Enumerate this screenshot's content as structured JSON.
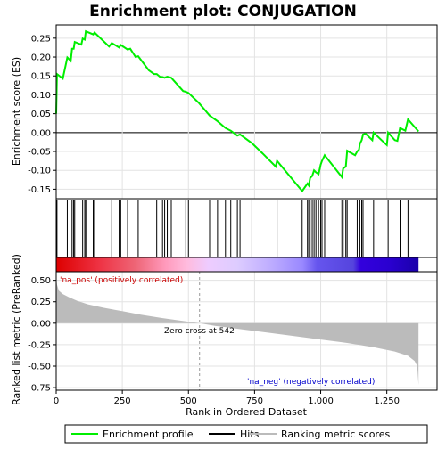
{
  "chart_data": {
    "type": "line",
    "title": "Enrichment plot: CONJUGATION",
    "top_panel": {
      "ylabel": "Enrichment score (ES)",
      "ylim": [
        -0.175,
        0.285
      ],
      "yticks": [
        "-0.15",
        "-0.10",
        "-0.05",
        "0.00",
        "0.05",
        "0.10",
        "0.15",
        "0.20",
        "0.25"
      ],
      "grid": true,
      "series": [
        {
          "name": "Enrichment profile",
          "color": "#00ee00",
          "points": [
            [
              0,
              0.05
            ],
            [
              3,
              0.155
            ],
            [
              25,
              0.143
            ],
            [
              42,
              0.199
            ],
            [
              55,
              0.19
            ],
            [
              60,
              0.222
            ],
            [
              66,
              0.222
            ],
            [
              70,
              0.24
            ],
            [
              95,
              0.233
            ],
            [
              100,
              0.249
            ],
            [
              108,
              0.246
            ],
            [
              112,
              0.268
            ],
            [
              140,
              0.26
            ],
            [
              145,
              0.265
            ],
            [
              200,
              0.228
            ],
            [
              210,
              0.237
            ],
            [
              238,
              0.225
            ],
            [
              244,
              0.232
            ],
            [
              270,
              0.22
            ],
            [
              280,
              0.222
            ],
            [
              300,
              0.2
            ],
            [
              310,
              0.202
            ],
            [
              350,
              0.165
            ],
            [
              370,
              0.155
            ],
            [
              380,
              0.155
            ],
            [
              392,
              0.148
            ],
            [
              402,
              0.147
            ],
            [
              410,
              0.145
            ],
            [
              420,
              0.148
            ],
            [
              435,
              0.145
            ],
            [
              480,
              0.11
            ],
            [
              490,
              0.108
            ],
            [
              500,
              0.105
            ],
            [
              540,
              0.078
            ],
            [
              580,
              0.045
            ],
            [
              610,
              0.03
            ],
            [
              640,
              0.012
            ],
            [
              660,
              0.005
            ],
            [
              685,
              -0.008
            ],
            [
              695,
              -0.005
            ],
            [
              740,
              -0.028
            ],
            [
              780,
              -0.055
            ],
            [
              830,
              -0.09
            ],
            [
              835,
              -0.075
            ],
            [
              930,
              -0.155
            ],
            [
              950,
              -0.135
            ],
            [
              955,
              -0.14
            ],
            [
              960,
              -0.12
            ],
            [
              968,
              -0.115
            ],
            [
              975,
              -0.1
            ],
            [
              982,
              -0.105
            ],
            [
              992,
              -0.11
            ],
            [
              1000,
              -0.085
            ],
            [
              1005,
              -0.075
            ],
            [
              1015,
              -0.06
            ],
            [
              1080,
              -0.118
            ],
            [
              1085,
              -0.095
            ],
            [
              1095,
              -0.09
            ],
            [
              1100,
              -0.048
            ],
            [
              1130,
              -0.06
            ],
            [
              1138,
              -0.05
            ],
            [
              1145,
              -0.045
            ],
            [
              1148,
              -0.03
            ],
            [
              1155,
              -0.02
            ],
            [
              1160,
              -0.005
            ],
            [
              1170,
              -0.003
            ],
            [
              1195,
              -0.02
            ],
            [
              1200,
              0.0
            ],
            [
              1230,
              -0.02
            ],
            [
              1250,
              -0.033
            ],
            [
              1255,
              0.0
            ],
            [
              1280,
              -0.02
            ],
            [
              1290,
              -0.022
            ],
            [
              1300,
              0.012
            ],
            [
              1320,
              0.005
            ],
            [
              1330,
              0.035
            ],
            [
              1370,
              0.003
            ]
          ]
        }
      ]
    },
    "hits": [
      3,
      42,
      60,
      66,
      70,
      100,
      108,
      112,
      140,
      145,
      210,
      238,
      244,
      270,
      310,
      380,
      402,
      410,
      420,
      435,
      490,
      500,
      580,
      610,
      640,
      660,
      685,
      695,
      740,
      835,
      930,
      950,
      955,
      960,
      968,
      975,
      982,
      992,
      1000,
      1005,
      1015,
      1080,
      1085,
      1095,
      1100,
      1138,
      1145,
      1148,
      1155,
      1160,
      1200,
      1255,
      1300,
      1330
    ],
    "color_bar": {
      "stops": [
        [
          0,
          "#dd0000"
        ],
        [
          0.12,
          "#ee3344"
        ],
        [
          0.22,
          "#ee6677"
        ],
        [
          0.3,
          "#ff99bb"
        ],
        [
          0.36,
          "#ffbbdd"
        ],
        [
          0.42,
          "#eeccff"
        ],
        [
          0.5,
          "#ddccff"
        ],
        [
          0.6,
          "#bbaaff"
        ],
        [
          0.68,
          "#9988ff"
        ],
        [
          0.72,
          "#6655ee"
        ],
        [
          0.82,
          "#5544dd"
        ],
        [
          0.84,
          "#3300dd"
        ],
        [
          0.92,
          "#2a00d0"
        ],
        [
          1.0,
          "#1a00aa"
        ]
      ]
    },
    "bottom_panel": {
      "ylabel": "Ranked list metric (PreRanked)",
      "xlabel": "Rank in Ordered Dataset",
      "ylim": [
        -0.78,
        0.6
      ],
      "yticks": [
        "-0.75",
        "-0.50",
        "-0.25",
        "0.00",
        "0.25",
        "0.50"
      ],
      "grid": true,
      "series": [
        {
          "name": "Ranking metric scores",
          "color": "#bbbbbb",
          "points": [
            [
              0,
              0.52
            ],
            [
              3,
              0.45
            ],
            [
              10,
              0.38
            ],
            [
              25,
              0.34
            ],
            [
              50,
              0.3
            ],
            [
              80,
              0.26
            ],
            [
              120,
              0.22
            ],
            [
              180,
              0.18
            ],
            [
              250,
              0.14
            ],
            [
              320,
              0.1
            ],
            [
              400,
              0.06
            ],
            [
              460,
              0.035
            ],
            [
              500,
              0.018
            ],
            [
              542,
              0.0
            ],
            [
              600,
              -0.03
            ],
            [
              700,
              -0.07
            ],
            [
              800,
              -0.11
            ],
            [
              900,
              -0.15
            ],
            [
              1000,
              -0.19
            ],
            [
              1100,
              -0.23
            ],
            [
              1200,
              -0.28
            ],
            [
              1280,
              -0.33
            ],
            [
              1330,
              -0.38
            ],
            [
              1355,
              -0.44
            ],
            [
              1365,
              -0.5
            ],
            [
              1370,
              -0.72
            ]
          ]
        }
      ],
      "annotations": {
        "pos_label": "'na_pos' (positively correlated)",
        "neg_label": "'na_neg' (negatively correlated)",
        "zero_cross": "Zero cross at 542",
        "zero_cross_rank": 542
      }
    },
    "xlim": [
      0,
      1440
    ],
    "max_rank": 1370,
    "xticks": [
      "0",
      "250",
      "500",
      "750",
      "1,000",
      "1,250"
    ],
    "legend": {
      "position": "bottom",
      "entries": [
        {
          "label": "Enrichment profile",
          "color": "#00ee00"
        },
        {
          "label": "Hits",
          "color": "#000000"
        },
        {
          "label": "Ranking metric scores",
          "color": "#bbbbbb"
        }
      ]
    }
  }
}
